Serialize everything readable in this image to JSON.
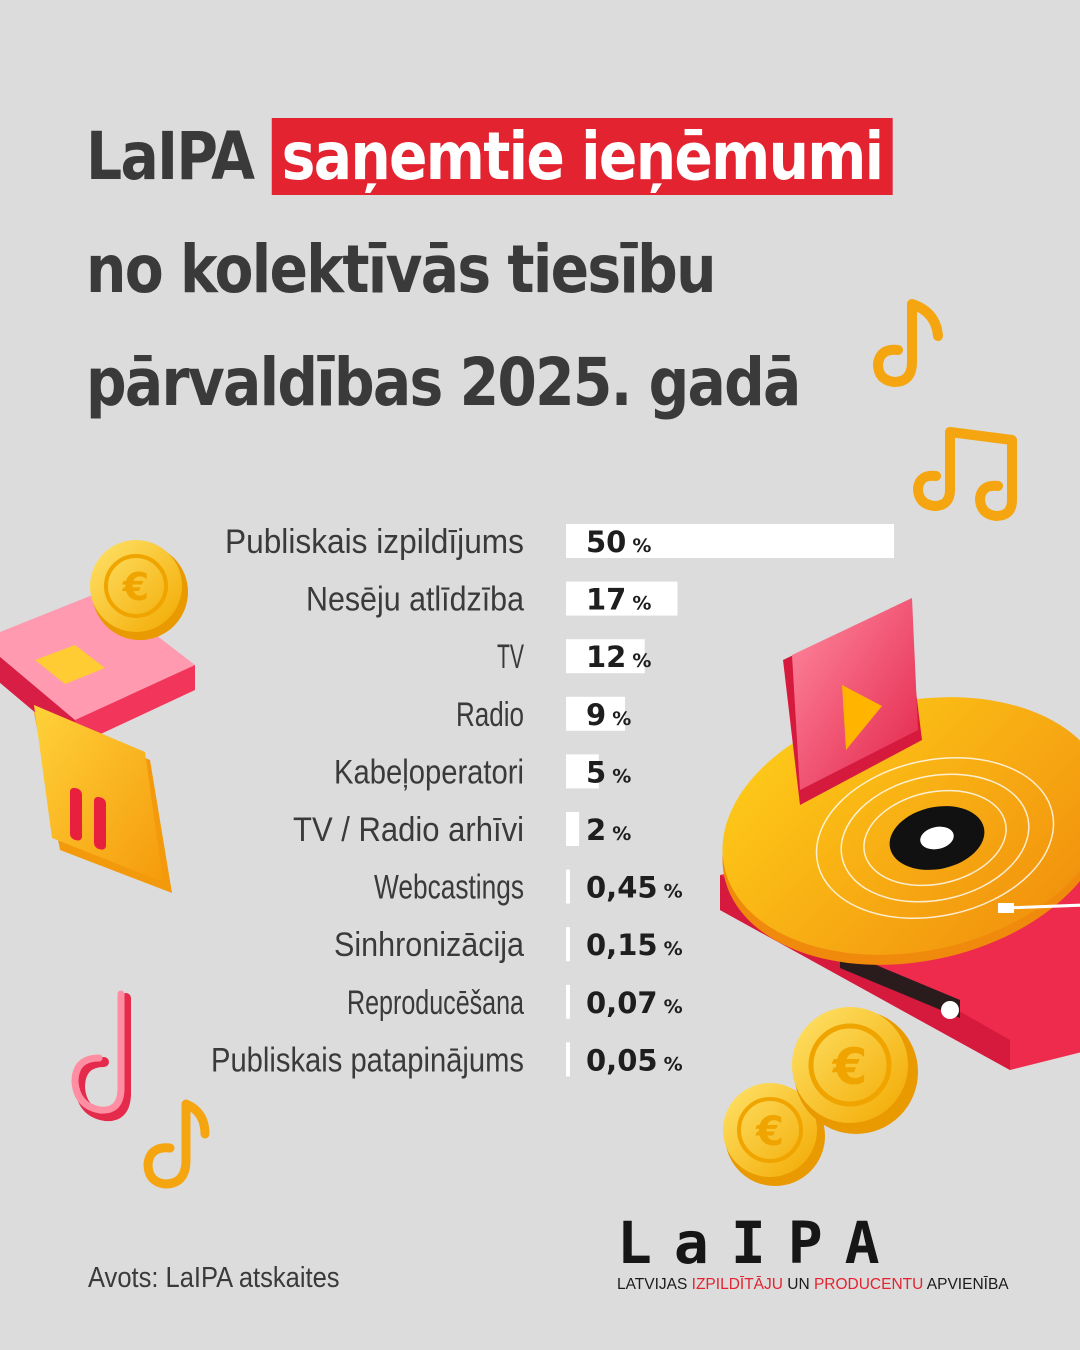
{
  "title": {
    "line1_prefix": "LaIPA",
    "line1_highlight": "saņemtie ieņēmumi",
    "line2": "no kolektīvās tiesību",
    "line3": "pārvaldības 2025. gadā"
  },
  "chart_data": {
    "type": "bar",
    "orientation": "horizontal",
    "title": "LaIPA saņemtie ieņēmumi no kolektīvās tiesību pārvaldības 2025. gadā",
    "categories": [
      "Publiskais izpildījums",
      "Nesēju atlīdzība",
      "TV",
      "Radio",
      "Kabeļoperatori",
      "TV / Radio arhīvi",
      "Webcastings",
      "Sinhronizācija",
      "Reproducēšana",
      "Publiskais patapinājums"
    ],
    "values": [
      50,
      17,
      12,
      9,
      5,
      2,
      0.45,
      0.15,
      0.07,
      0.05
    ],
    "value_labels": [
      "50",
      "17",
      "12",
      "9",
      "5",
      "2",
      "0,45",
      "0,15",
      "0,07",
      "0,05"
    ],
    "unit": "%",
    "bar_color": "#ffffff",
    "xlim": [
      0,
      50
    ],
    "grid": false,
    "legend": "none"
  },
  "source": "Avots: LaIPA atskaites",
  "logo": {
    "mark": "LaIPA",
    "subtitle_parts": [
      "LATVIJAS ",
      "IZPILDĪTĀJU",
      " UN ",
      "PRODUCENTU",
      " APVIENĪBA"
    ]
  },
  "colors": {
    "background": "#dcdcdc",
    "accent_red": "#e32330",
    "text_dark": "#3a3a3a",
    "coin_gold": "#f7c21a",
    "note_orange": "#f5a50f",
    "pink": "#f35a78"
  },
  "icons": [
    "euro-coin-icon",
    "music-note-icon",
    "double-music-note-icon",
    "pause-button-icon",
    "play-button-icon",
    "vinyl-record-player-icon",
    "credit-card-icon"
  ]
}
